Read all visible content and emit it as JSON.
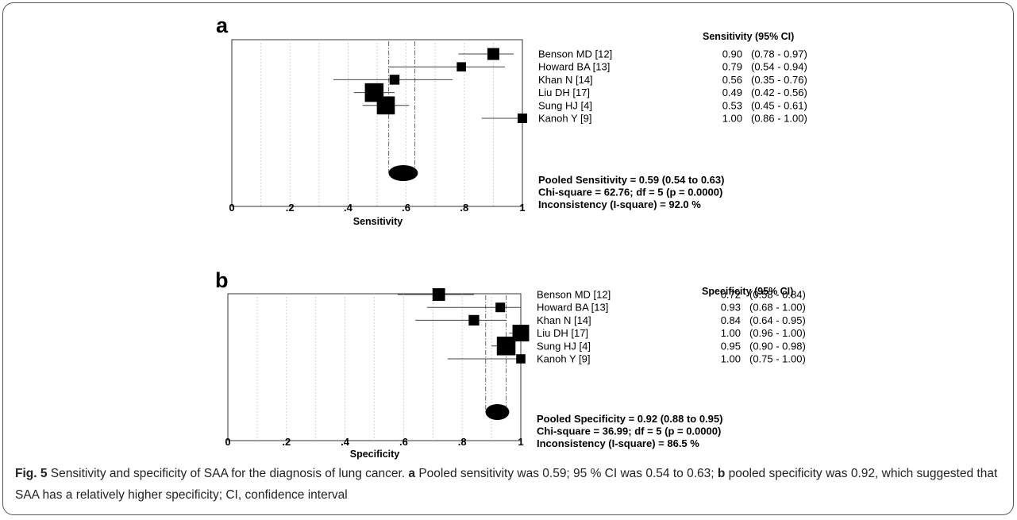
{
  "chart_data": [
    {
      "type": "forest",
      "panel_label": "a",
      "header": "Sensitivity (95% CI)",
      "xlabel": "Sensitivity",
      "xlim": [
        0,
        1
      ],
      "x_ticks": [
        "0",
        ".2",
        ".4",
        ".6",
        ".8",
        "1"
      ],
      "studies": [
        {
          "name": "Benson MD [12]",
          "estimate": 0.9,
          "lower": 0.78,
          "upper": 0.97,
          "estimate_label": "0.90",
          "ci_label": "(0.78 - 0.97)",
          "weight": 1.0
        },
        {
          "name": "Howard BA [13]",
          "estimate": 0.79,
          "lower": 0.54,
          "upper": 0.94,
          "estimate_label": "0.79",
          "ci_label": "(0.54 - 0.94)",
          "weight": 0.6
        },
        {
          "name": "Khan N [14]",
          "estimate": 0.56,
          "lower": 0.35,
          "upper": 0.76,
          "estimate_label": "0.56",
          "ci_label": "(0.35 - 0.76)",
          "weight": 0.7
        },
        {
          "name": "Liu DH [17]",
          "estimate": 0.49,
          "lower": 0.42,
          "upper": 0.56,
          "estimate_label": "0.49",
          "ci_label": "(0.42 - 0.56)",
          "weight": 2.0
        },
        {
          "name": "Sung HJ [4]",
          "estimate": 0.53,
          "lower": 0.45,
          "upper": 0.61,
          "estimate_label": "0.53",
          "ci_label": "(0.45 - 0.61)",
          "weight": 1.9
        },
        {
          "name": "Kanoh Y [9]",
          "estimate": 1.0,
          "lower": 0.86,
          "upper": 1.0,
          "estimate_label": "1.00",
          "ci_label": "(0.86 - 1.00)",
          "weight": 0.65
        }
      ],
      "pooled": {
        "estimate": 0.59,
        "lower": 0.54,
        "upper": 0.63
      },
      "summary_lines": [
        "Pooled Sensitivity = 0.59 (0.54 to 0.63)",
        "Chi-square = 62.76; df = 5 (p = 0.0000)",
        "Inconsistency (I-square) = 92.0 %"
      ]
    },
    {
      "type": "forest",
      "panel_label": "b",
      "header": "Specificity (95% CI)",
      "xlabel": "Specificity",
      "xlim": [
        0,
        1
      ],
      "x_ticks": [
        "0",
        ".2",
        ".4",
        ".6",
        ".8",
        "1"
      ],
      "studies": [
        {
          "name": "Benson MD [12]",
          "estimate": 0.72,
          "lower": 0.58,
          "upper": 0.84,
          "estimate_label": "0.72",
          "ci_label": "(0.58 - 0.84)",
          "weight": 1.1
        },
        {
          "name": "Howard BA [13]",
          "estimate": 0.93,
          "lower": 0.68,
          "upper": 1.0,
          "estimate_label": "0.93",
          "ci_label": "(0.68 - 1.00)",
          "weight": 0.65
        },
        {
          "name": "Khan N [14]",
          "estimate": 0.84,
          "lower": 0.64,
          "upper": 0.95,
          "estimate_label": "0.84",
          "ci_label": "(0.64 - 0.95)",
          "weight": 0.8
        },
        {
          "name": "Liu DH [17]",
          "estimate": 1.0,
          "lower": 0.96,
          "upper": 1.0,
          "estimate_label": "1.00",
          "ci_label": "(0.96 - 1.00)",
          "weight": 1.7
        },
        {
          "name": "Sung HJ [4]",
          "estimate": 0.95,
          "lower": 0.9,
          "upper": 0.98,
          "estimate_label": "0.95",
          "ci_label": "(0.90 - 0.98)",
          "weight": 2.0
        },
        {
          "name": "Kanoh Y [9]",
          "estimate": 1.0,
          "lower": 0.75,
          "upper": 1.0,
          "estimate_label": "1.00",
          "ci_label": "(0.75 - 1.00)",
          "weight": 0.6
        }
      ],
      "pooled": {
        "estimate": 0.92,
        "lower": 0.88,
        "upper": 0.95
      },
      "summary_lines": [
        "Pooled Specificity = 0.92 (0.88 to 0.95)",
        "Chi-square = 36.99; df = 5 (p = 0.0000)",
        "Inconsistency (I-square) = 86.5 %"
      ]
    }
  ],
  "caption": {
    "fig_label": "Fig. 5",
    "text_1": " Sensitivity and specificity of SAA for the diagnosis of lung cancer. ",
    "label_a": "a",
    "text_2": " Pooled sensitivity was 0.59; 95 % CI was 0.54 to 0.63; ",
    "label_b": "b",
    "text_3": " pooled specificity was 0.92, which suggested that SAA has a relatively higher specificity; CI, confidence interval"
  }
}
